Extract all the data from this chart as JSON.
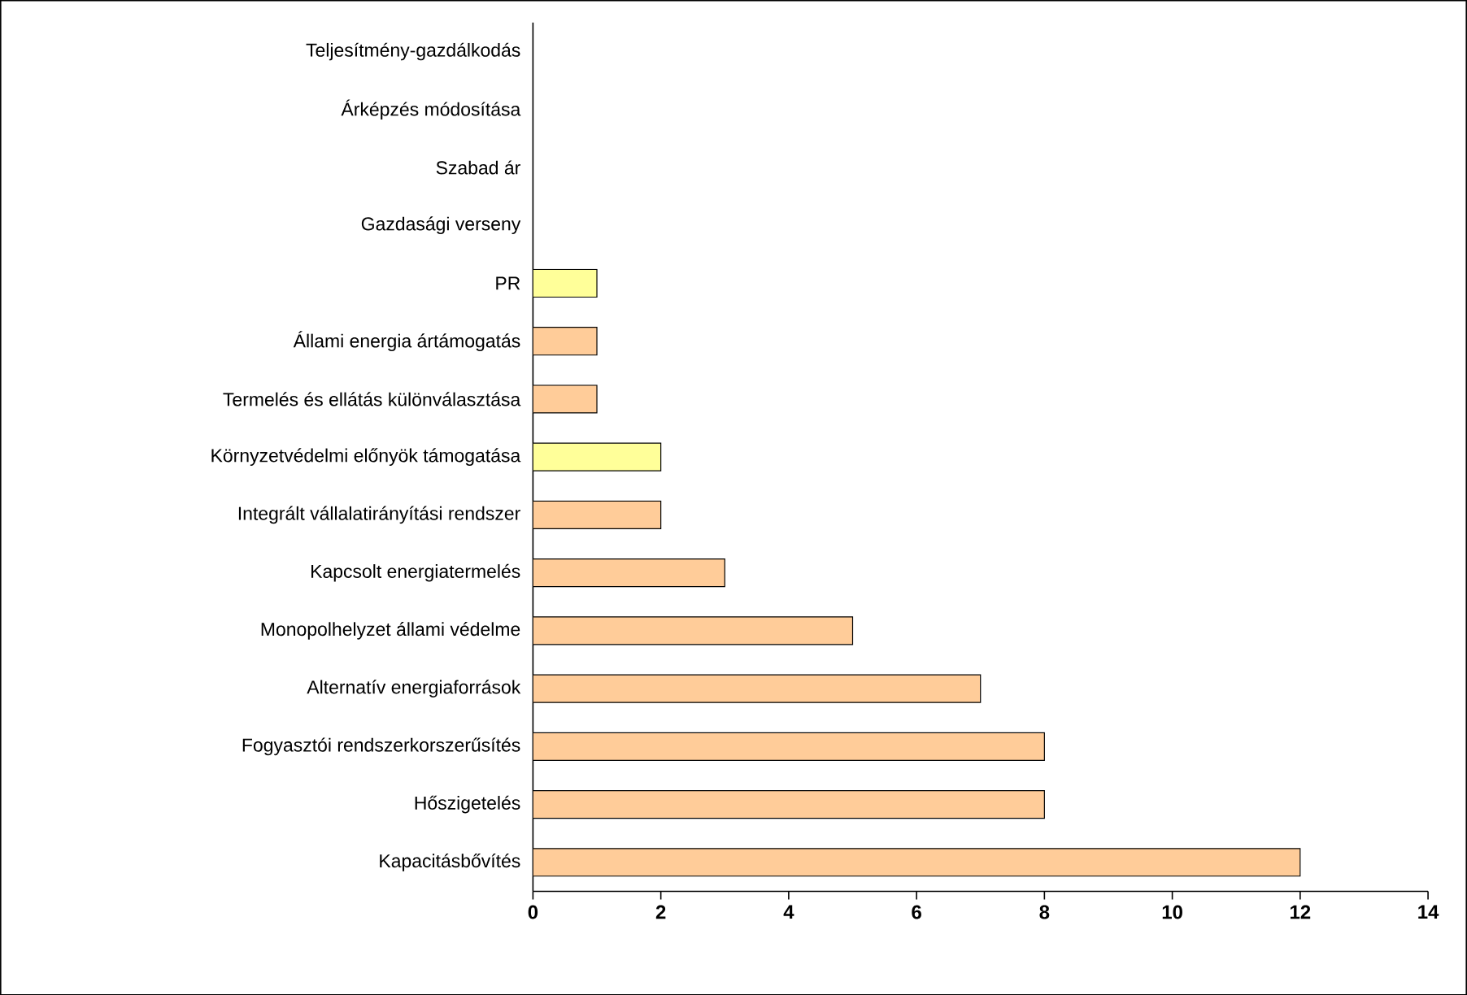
{
  "chart_data": {
    "type": "bar",
    "orientation": "horizontal",
    "categories": [
      "Teljesítmény-gazdálkodás",
      "Árképzés módosítása",
      "Szabad ár",
      "Gazdasági verseny",
      "PR",
      "Állami energia ártámogatás",
      "Termelés és ellátás különválasztása",
      "Környzetvédelmi előnyök támogatása",
      "Integrált vállalatirányítási rendszer",
      "Kapcsolt energiatermelés",
      "Monopolhelyzet állami védelme",
      "Alternatív energiaforrások",
      "Fogyasztói rendszerkorszerűsítés",
      "Hőszigetelés",
      "Kapacitásbővítés"
    ],
    "values": [
      0,
      0,
      0,
      0,
      1,
      1,
      1,
      2,
      2,
      3,
      5,
      7,
      8,
      8,
      12
    ],
    "colors": [
      "#ffcc99",
      "#ffcc99",
      "#ffcc99",
      "#ffcc99",
      "#ffff99",
      "#ffcc99",
      "#ffcc99",
      "#ffff99",
      "#ffcc99",
      "#ffcc99",
      "#ffcc99",
      "#ffcc99",
      "#ffcc99",
      "#ffcc99",
      "#ffcc99"
    ],
    "xlim": [
      0,
      14
    ],
    "xticks": [
      0,
      2,
      4,
      6,
      8,
      10,
      12,
      14
    ]
  }
}
